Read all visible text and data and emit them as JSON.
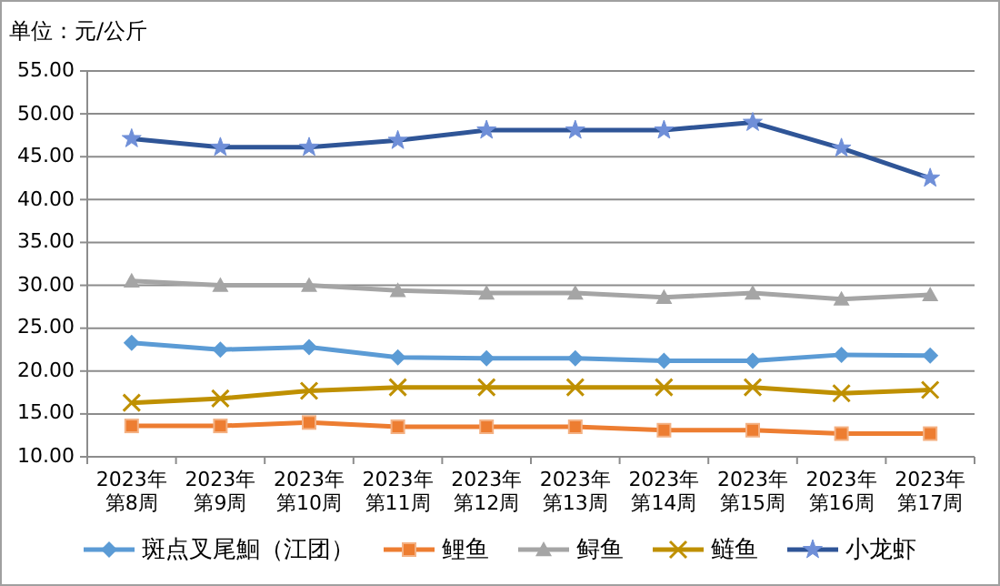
{
  "chart_data": {
    "type": "line",
    "ylabel": "单位：元/公斤",
    "categories": [
      "2023年第8周",
      "2023年第9周",
      "2023年第10周",
      "2023年第11周",
      "2023年第12周",
      "2023年第13周",
      "2023年第14周",
      "2023年第15周",
      "2023年第16周",
      "2023年第17周"
    ],
    "ylim": [
      10,
      55
    ],
    "yticks": [
      {
        "value": 10,
        "label": "10.00"
      },
      {
        "value": 15,
        "label": "15.00"
      },
      {
        "value": 20,
        "label": "20.00"
      },
      {
        "value": 25,
        "label": "25.00"
      },
      {
        "value": 30,
        "label": "30.00"
      },
      {
        "value": 35,
        "label": "35.00"
      },
      {
        "value": 40,
        "label": "40.00"
      },
      {
        "value": 45,
        "label": "45.00"
      },
      {
        "value": 50,
        "label": "50.00"
      },
      {
        "value": 55,
        "label": "55.00"
      }
    ],
    "grid": "y",
    "legend": "bottom",
    "series": [
      {
        "name": "斑点叉尾鮰（江团）",
        "color": "#5b9bd5",
        "marker": "diamond",
        "values": [
          23.3,
          22.5,
          22.8,
          21.6,
          21.5,
          21.5,
          21.2,
          21.2,
          21.9,
          21.8
        ]
      },
      {
        "name": "鲤鱼",
        "color": "#ed7d31",
        "marker": "square",
        "values": [
          13.6,
          13.6,
          14.0,
          13.5,
          13.5,
          13.5,
          13.1,
          13.1,
          12.7,
          12.7
        ]
      },
      {
        "name": "鲟鱼",
        "color": "#a5a5a5",
        "marker": "triangle",
        "values": [
          30.5,
          30.0,
          30.0,
          29.4,
          29.1,
          29.1,
          28.6,
          29.1,
          28.4,
          28.9
        ]
      },
      {
        "name": "鲢鱼",
        "color": "#bf9000",
        "marker": "cross",
        "values": [
          16.3,
          16.8,
          17.7,
          18.1,
          18.1,
          18.1,
          18.1,
          18.1,
          17.4,
          17.8
        ]
      },
      {
        "name": "小龙虾",
        "color": "#2f5597",
        "marker": "star",
        "values": [
          47.1,
          46.1,
          46.1,
          46.9,
          48.1,
          48.1,
          48.1,
          49.0,
          46.0,
          42.5
        ]
      }
    ]
  }
}
